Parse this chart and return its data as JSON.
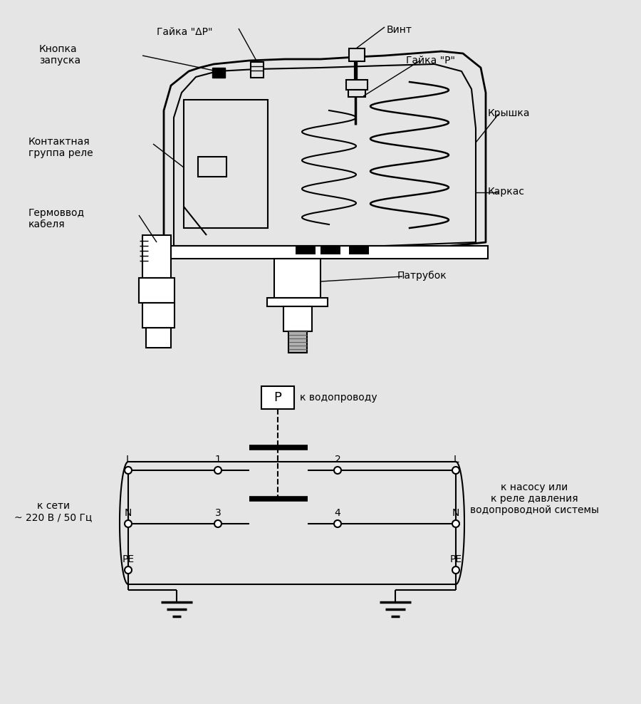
{
  "bg_color": "#e5e5e5",
  "line_color": "#000000",
  "text_color": "#000000",
  "font_size_label": 10,
  "diagram_labels": {
    "gayka_dp": "Гайка \"ΔР\"",
    "vint": "Винт",
    "knopka": "Кнопка\nзапуска",
    "gayka_p": "Гайка \"Р\"",
    "kryshka": "Крышка",
    "kontakt": "Контактная\nгруппа реле",
    "germovvod": "Гермоввод\nкабеля",
    "karkas": "Каркас",
    "patrubок": "Патрубок"
  },
  "circuit_labels": {
    "p_box": "P",
    "k_vodoprovodu": "к водопроводу",
    "k_seti": "к сети\n~ 220 В / 50 Гц",
    "k_nasosu": "к насосу или\nк реле давления\nводопроводной системы"
  }
}
